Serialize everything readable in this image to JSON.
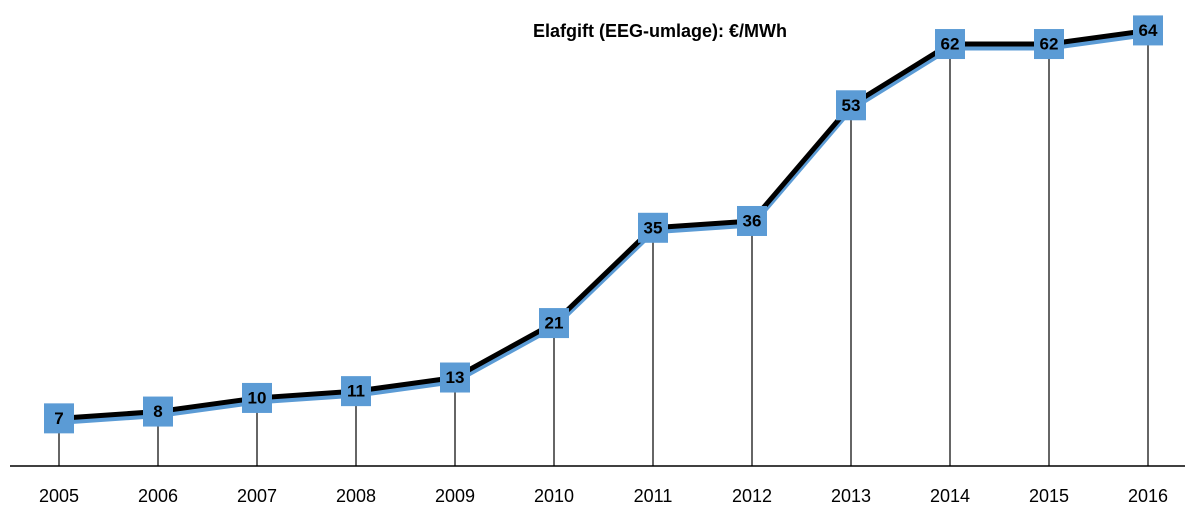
{
  "chart_data": {
    "type": "line",
    "title": "Elafgift (EEG-umlage): €/MWh",
    "categories": [
      "2005",
      "2006",
      "2007",
      "2008",
      "2009",
      "2010",
      "2011",
      "2012",
      "2013",
      "2014",
      "2015",
      "2016"
    ],
    "values": [
      7,
      8,
      10,
      11,
      13,
      21,
      35,
      36,
      53,
      62,
      62,
      64
    ],
    "color": "#5b9bd5",
    "ylim": [
      0,
      67
    ],
    "drop_lines": true
  }
}
